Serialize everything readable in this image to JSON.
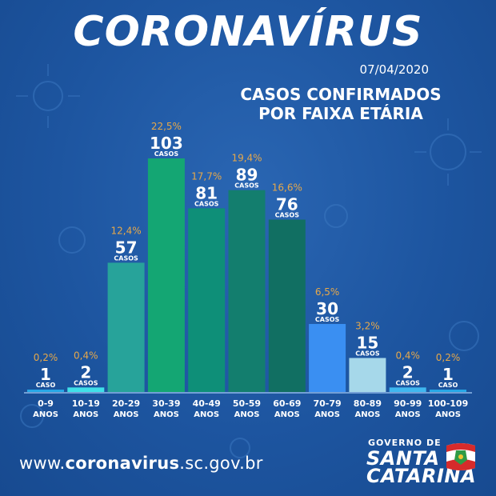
{
  "header": {
    "title": "CORONAVÍRUS",
    "date": "07/04/2020",
    "subtitle_line1": "CASOS CONFIRMADOS",
    "subtitle_line2": "POR FAIXA ETÁRIA"
  },
  "chart_data": {
    "type": "bar",
    "categories": [
      [
        "0-9",
        "ANOS"
      ],
      [
        "10-19",
        "ANOS"
      ],
      [
        "20-29",
        "ANOS"
      ],
      [
        "30-39",
        "ANOS"
      ],
      [
        "40-49",
        "ANOS"
      ],
      [
        "50-59",
        "ANOS"
      ],
      [
        "60-69",
        "ANOS"
      ],
      [
        "70-79",
        "ANOS"
      ],
      [
        "80-89",
        "ANOS"
      ],
      [
        "90-99",
        "ANOS"
      ],
      [
        "100-109",
        "ANOS"
      ]
    ],
    "values": [
      1,
      2,
      57,
      103,
      81,
      89,
      76,
      30,
      15,
      2,
      1
    ],
    "percent_labels": [
      "0,2%",
      "0,4%",
      "12,4%",
      "22,5%",
      "17,7%",
      "19,4%",
      "16,6%",
      "6,5%",
      "3,2%",
      "0,4%",
      "0,2%"
    ],
    "unit_labels": [
      "CASO",
      "CASOS",
      "CASOS",
      "CASOS",
      "CASOS",
      "CASOS",
      "CASOS",
      "CASOS",
      "CASOS",
      "CASOS",
      "CASO"
    ],
    "bar_colors": [
      "#27a7e6",
      "#3fe0e8",
      "#27a39a",
      "#14a673",
      "#0e8f78",
      "#137e6e",
      "#116f62",
      "#3a8ff2",
      "#a6d8ea",
      "#3fb7ef",
      "#27a7e6"
    ],
    "ylim": [
      0,
      103
    ],
    "grid": false,
    "legend": "none"
  },
  "footer": {
    "url_prefix": "www.",
    "url_bold": "coronavirus",
    "url_suffix": ".sc.gov.br"
  },
  "logo": {
    "line1": "GOVERNO DE",
    "line2": "SANTA",
    "line3": "CATARINA"
  },
  "colors": {
    "background": "#1d55a0",
    "percent_text": "#e6a84a",
    "baseline": "#8fb8e8"
  }
}
